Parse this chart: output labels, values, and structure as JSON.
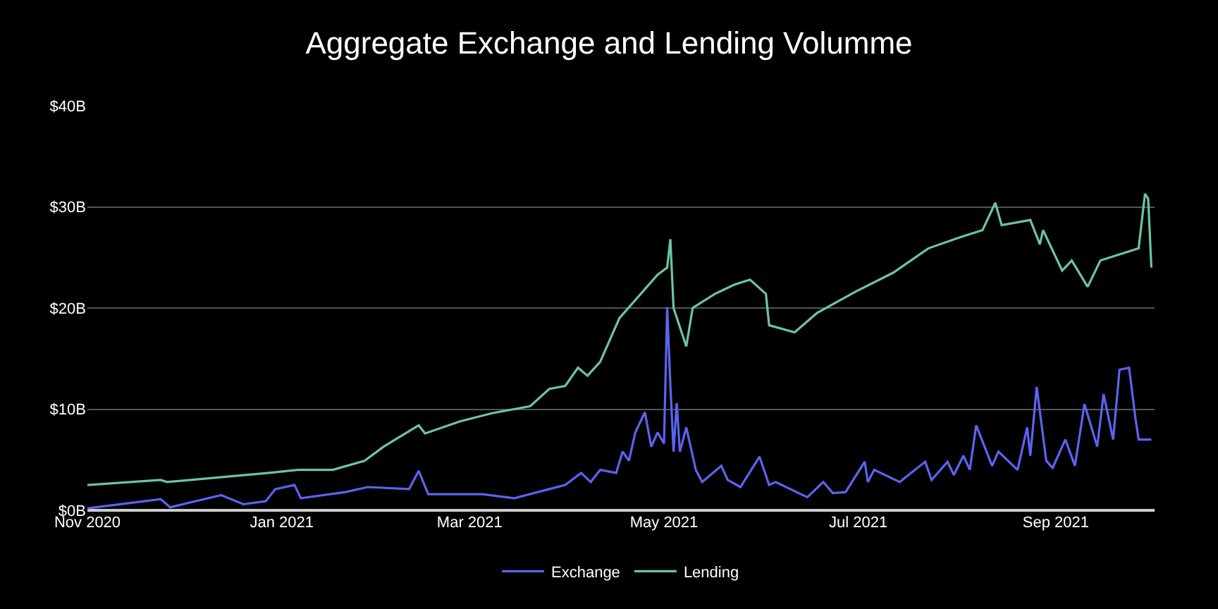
{
  "chart_data": {
    "type": "line",
    "title": "Aggregate Exchange and Lending Volumme",
    "xlim": [
      "2020-11-01",
      "2021-10-02"
    ],
    "xticks": [
      {
        "value": "2020-11-01",
        "label": "Nov 2020"
      },
      {
        "value": "2021-01-01",
        "label": "Jan 2021"
      },
      {
        "value": "2021-03-01",
        "label": "Mar 2021"
      },
      {
        "value": "2021-05-01",
        "label": "May 2021"
      },
      {
        "value": "2021-07-01",
        "label": "Jul 2021"
      },
      {
        "value": "2021-09-01",
        "label": "Sep 2021"
      }
    ],
    "ylim": [
      0,
      40
    ],
    "yticks": [
      {
        "value": 0,
        "label": "$0B"
      },
      {
        "value": 10,
        "label": "$10B"
      },
      {
        "value": 20,
        "label": "$20B"
      },
      {
        "value": 30,
        "label": "$30B"
      },
      {
        "value": 40,
        "label": "$40B"
      }
    ],
    "grid": "y",
    "legend": "bottom",
    "series": [
      {
        "name": "Exchange",
        "color": "#5a64f0",
        "x": [
          "2020-11-01",
          "2020-11-24",
          "2020-11-27",
          "2020-12-13",
          "2020-12-20",
          "2020-12-27",
          "2020-12-30",
          "2021-01-05",
          "2021-01-07",
          "2021-01-21",
          "2021-01-28",
          "2021-02-10",
          "2021-02-13",
          "2021-02-16",
          "2021-03-05",
          "2021-03-15",
          "2021-03-26",
          "2021-03-31",
          "2021-04-05",
          "2021-04-08",
          "2021-04-11",
          "2021-04-16",
          "2021-04-18",
          "2021-04-20",
          "2021-04-22",
          "2021-04-25",
          "2021-04-27",
          "2021-04-29",
          "2021-05-01",
          "2021-05-02",
          "2021-05-03",
          "2021-05-04",
          "2021-05-05",
          "2021-05-06",
          "2021-05-08",
          "2021-05-11",
          "2021-05-13",
          "2021-05-19",
          "2021-05-21",
          "2021-05-25",
          "2021-05-31",
          "2021-06-03",
          "2021-06-05",
          "2021-06-15",
          "2021-06-20",
          "2021-06-23",
          "2021-06-27",
          "2021-07-03",
          "2021-07-04",
          "2021-07-06",
          "2021-07-14",
          "2021-07-22",
          "2021-07-24",
          "2021-07-29",
          "2021-07-31",
          "2021-08-03",
          "2021-08-05",
          "2021-08-07",
          "2021-08-12",
          "2021-08-14",
          "2021-08-20",
          "2021-08-23",
          "2021-08-24",
          "2021-08-26",
          "2021-08-29",
          "2021-08-31",
          "2021-09-04",
          "2021-09-07",
          "2021-09-10",
          "2021-09-14",
          "2021-09-16",
          "2021-09-19",
          "2021-09-21",
          "2021-09-24",
          "2021-09-26",
          "2021-09-27",
          "2021-09-28",
          "2021-10-01"
        ],
        "values": [
          0.2,
          1.1,
          0.3,
          1.5,
          0.6,
          0.9,
          2.1,
          2.5,
          1.2,
          1.8,
          2.3,
          2.1,
          3.9,
          1.6,
          1.6,
          1.2,
          2.1,
          2.5,
          3.7,
          2.8,
          4.0,
          3.7,
          5.8,
          4.9,
          7.7,
          9.7,
          6.3,
          7.7,
          6.6,
          20.1,
          12.4,
          5.8,
          10.6,
          5.8,
          8.2,
          4.0,
          2.8,
          4.4,
          3.0,
          2.3,
          5.3,
          2.5,
          2.8,
          1.3,
          2.8,
          1.7,
          1.8,
          4.8,
          2.8,
          4.0,
          2.8,
          4.8,
          3.0,
          4.8,
          3.5,
          5.4,
          4.0,
          8.4,
          4.4,
          5.8,
          4.0,
          8.2,
          5.4,
          12.2,
          4.9,
          4.2,
          7.0,
          4.4,
          10.5,
          6.3,
          11.5,
          7.0,
          13.9,
          14.1,
          9.1,
          7.0,
          7.0,
          7.0
        ]
      },
      {
        "name": "Lending",
        "color": "#6cc5a0",
        "x": [
          "2020-11-01",
          "2020-11-24",
          "2020-11-26",
          "2020-12-28",
          "2021-01-06",
          "2021-01-17",
          "2021-01-27",
          "2021-02-02",
          "2021-02-13",
          "2021-02-15",
          "2021-02-26",
          "2021-03-08",
          "2021-03-20",
          "2021-03-26",
          "2021-03-31",
          "2021-04-04",
          "2021-04-07",
          "2021-04-11",
          "2021-04-17",
          "2021-04-29",
          "2021-05-02",
          "2021-05-03",
          "2021-05-04",
          "2021-05-08",
          "2021-05-10",
          "2021-05-17",
          "2021-05-23",
          "2021-05-28",
          "2021-06-02",
          "2021-06-03",
          "2021-06-11",
          "2021-06-18",
          "2021-06-30",
          "2021-07-12",
          "2021-07-23",
          "2021-08-02",
          "2021-08-09",
          "2021-08-13",
          "2021-08-15",
          "2021-08-24",
          "2021-08-27",
          "2021-08-28",
          "2021-09-03",
          "2021-09-06",
          "2021-09-11",
          "2021-09-15",
          "2021-09-27",
          "2021-09-29",
          "2021-09-30",
          "2021-10-01"
        ],
        "values": [
          2.5,
          3.0,
          2.8,
          3.7,
          4.0,
          4.0,
          4.9,
          6.3,
          8.4,
          7.6,
          8.8,
          9.6,
          10.3,
          12.0,
          12.3,
          14.1,
          13.3,
          14.7,
          19.0,
          23.3,
          24.0,
          26.8,
          20.0,
          16.2,
          20.0,
          21.4,
          22.3,
          22.8,
          21.4,
          18.3,
          17.6,
          19.5,
          21.6,
          23.5,
          25.9,
          27.0,
          27.7,
          30.4,
          28.2,
          28.7,
          26.3,
          27.7,
          23.7,
          24.7,
          22.1,
          24.7,
          25.9,
          31.3,
          30.8,
          24.0
        ]
      }
    ]
  }
}
